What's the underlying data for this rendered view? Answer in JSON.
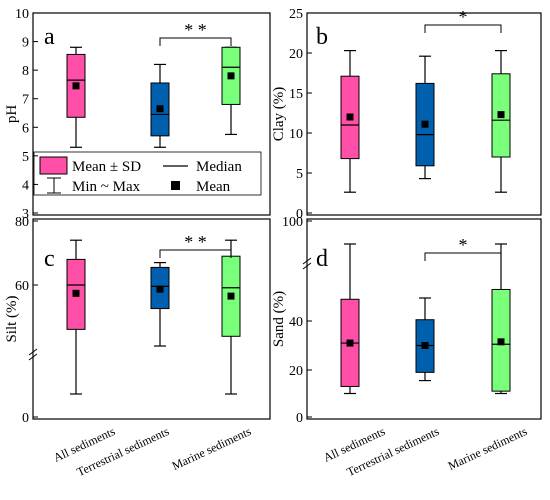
{
  "colors": {
    "all": "#ff4fa7",
    "terrestrial": "#0060ad",
    "marine": "#7aff7a"
  },
  "categories": [
    "All sediments",
    "Terrestrial sediments",
    "Marine sediments"
  ],
  "legend": {
    "mean_sd": "Mean ± SD",
    "median": "Median",
    "min_max": "Min ~ Max",
    "mean": "Mean"
  },
  "chart_data": [
    {
      "panel": "a",
      "type": "box",
      "ylabel": "pH",
      "ylim": [
        3,
        10
      ],
      "ticks": [
        3,
        4,
        5,
        6,
        7,
        8,
        9,
        10
      ],
      "significance": {
        "text": "* *",
        "between": [
          1,
          2
        ]
      },
      "boxes": [
        {
          "category": "All sediments",
          "min": 5.3,
          "q1": 6.35,
          "median": 7.65,
          "q3": 8.55,
          "max": 8.8,
          "mean": 7.45
        },
        {
          "category": "Terrestrial sediments",
          "min": 5.3,
          "q1": 5.7,
          "median": 6.45,
          "q3": 7.55,
          "max": 8.2,
          "mean": 6.65
        },
        {
          "category": "Marine sediments",
          "min": 5.75,
          "q1": 6.8,
          "median": 8.1,
          "q3": 8.8,
          "max": 8.8,
          "mean": 7.8
        }
      ]
    },
    {
      "panel": "b",
      "type": "box",
      "ylabel": "Clay (%)",
      "ylim": [
        0,
        25
      ],
      "ticks": [
        0,
        5,
        10,
        15,
        20,
        25
      ],
      "significance": {
        "text": "*",
        "between": [
          1,
          2
        ]
      },
      "boxes": [
        {
          "category": "All sediments",
          "min": 2.6,
          "q1": 6.8,
          "median": 11.0,
          "q3": 17.1,
          "max": 20.3,
          "mean": 12.0
        },
        {
          "category": "Terrestrial sediments",
          "min": 4.3,
          "q1": 5.9,
          "median": 9.8,
          "q3": 16.2,
          "max": 19.6,
          "mean": 11.1
        },
        {
          "category": "Marine sediments",
          "min": 2.6,
          "q1": 7.0,
          "median": 11.6,
          "q3": 17.4,
          "max": 20.3,
          "mean": 12.3
        }
      ]
    },
    {
      "panel": "c",
      "type": "box",
      "ylabel": "Silt (%)",
      "ticks": [
        0,
        60,
        80
      ],
      "significance": {
        "text": "* *",
        "between": [
          1,
          2
        ]
      },
      "boxes": [
        {
          "category": "All sediments",
          "min": 6,
          "q1": 44,
          "median": 60,
          "q3": 68,
          "max": 74,
          "mean": 57
        },
        {
          "category": "Terrestrial sediments",
          "min": 38,
          "q1": 51.5,
          "median": 59.5,
          "q3": 65.5,
          "max": 67,
          "mean": 58.5
        },
        {
          "category": "Marine sediments",
          "min": 6,
          "q1": 41.5,
          "median": 59,
          "q3": 69,
          "max": 74,
          "mean": 56
        }
      ]
    },
    {
      "panel": "d",
      "type": "box",
      "ylabel": "Sand (%)",
      "ticks": [
        0,
        20,
        40,
        100
      ],
      "significance": {
        "text": "*",
        "between": [
          1,
          2
        ]
      },
      "boxes": [
        {
          "category": "All sediments",
          "min": 10,
          "q1": 13,
          "median": 31,
          "q3": 48.5,
          "max": 68,
          "mean": 31
        },
        {
          "category": "Terrestrial sediments",
          "min": 15.5,
          "q1": 19,
          "median": 30,
          "q3": 40.5,
          "max": 49,
          "mean": 30
        },
        {
          "category": "Marine sediments",
          "min": 10,
          "q1": 11,
          "median": 30.5,
          "q3": 52,
          "max": 68,
          "mean": 31.5
        }
      ]
    }
  ]
}
